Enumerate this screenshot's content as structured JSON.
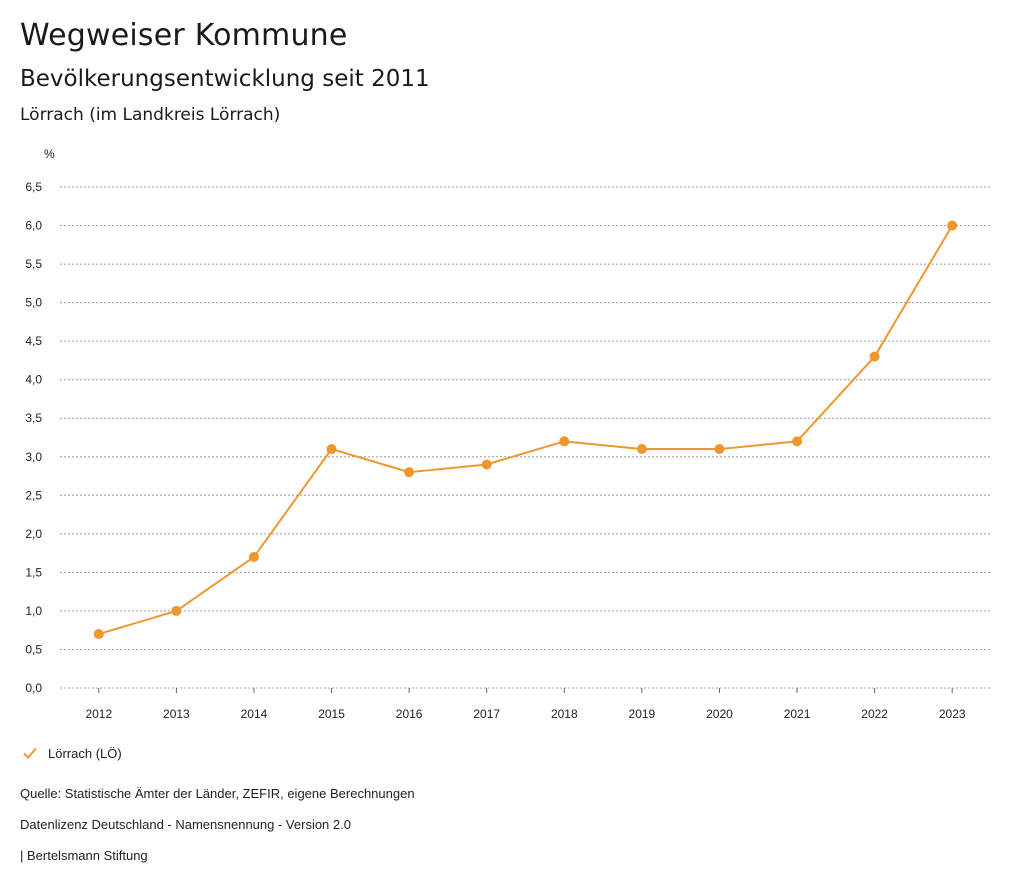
{
  "header": {
    "title": "Wegweiser Kommune",
    "subtitle": "Bevölkerungsentwicklung seit 2011",
    "region": "Lörrach (im Landkreis Lörrach)"
  },
  "chart_data": {
    "type": "line",
    "unit": "%",
    "x": [
      "2012",
      "2013",
      "2014",
      "2015",
      "2016",
      "2017",
      "2018",
      "2019",
      "2020",
      "2021",
      "2022",
      "2023"
    ],
    "series": [
      {
        "name": "Lörrach (LÖ)",
        "color": "#f0962f",
        "values": [
          0.7,
          1.0,
          1.7,
          3.1,
          2.8,
          2.9,
          3.2,
          3.1,
          3.1,
          3.2,
          4.3,
          6.0
        ]
      }
    ],
    "y_ticks": [
      "0,0",
      "0,5",
      "1,0",
      "1,5",
      "2,0",
      "2,5",
      "3,0",
      "3,5",
      "4,0",
      "4,5",
      "5,0",
      "5,5",
      "6,0",
      "6,5"
    ],
    "ylim": [
      0,
      6.5
    ],
    "grid": true,
    "legend_position": "bottom-left"
  },
  "legend": {
    "label": "Lörrach (LÖ)",
    "icon": "check-icon"
  },
  "footer": {
    "source": "Quelle: Statistische Ämter der Länder, ZEFIR, eigene Berechnungen",
    "license": "Datenlizenz Deutschland - Namensnennung - Version 2.0",
    "publisher": "| Bertelsmann Stiftung"
  }
}
